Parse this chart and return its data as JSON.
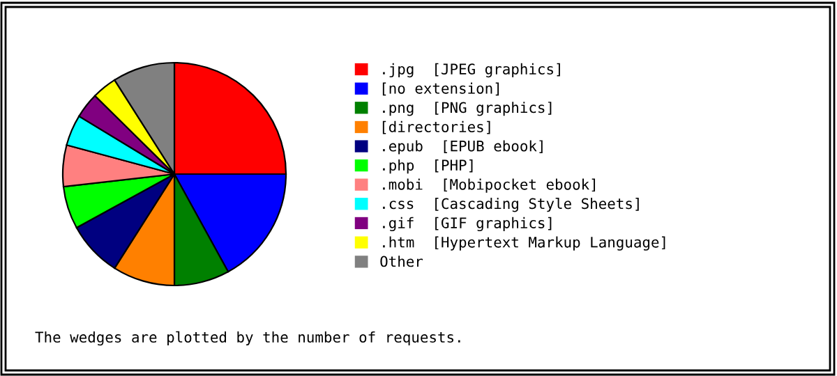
{
  "chart_data": {
    "type": "pie",
    "categories": [
      ".jpg  [JPEG graphics]",
      "[no extension]",
      ".png  [PNG graphics]",
      "[directories]",
      ".epub  [EPUB ebook]",
      ".php  [PHP]",
      ".mobi  [Mobipocket ebook]",
      ".css  [Cascading Style Sheets]",
      ".gif  [GIF graphics]",
      ".htm  [Hypertext Markup Language]",
      "Other"
    ],
    "values": [
      25,
      17,
      8,
      9,
      8,
      6.2,
      6,
      4.5,
      3.7,
      3.6,
      9
    ],
    "colors": [
      "#ff0000",
      "#0000ff",
      "#008000",
      "#ff8000",
      "#000080",
      "#00ff00",
      "#ff8080",
      "#00ffff",
      "#800080",
      "#ffff00",
      "#808080"
    ],
    "legend": "right",
    "annotations": [
      "The wedges are plotted by the number of requests."
    ]
  }
}
